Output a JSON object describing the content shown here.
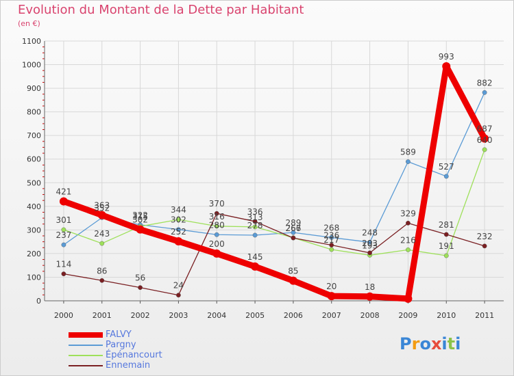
{
  "title": "Evolution du Montant de la Dette par Habitant",
  "subtitle": "(en €)",
  "logo": {
    "letters": [
      "P",
      "r",
      "o",
      "x",
      "i",
      "t",
      "i"
    ],
    "colors": [
      "#3a86d6",
      "#f39c12",
      "#3a86d6",
      "#e74c3c",
      "#3a86d6",
      "#8bc34a",
      "#3a86d6"
    ]
  },
  "chart_data": {
    "type": "line",
    "x": [
      "2000",
      "2001",
      "2002",
      "2003",
      "2004",
      "2005",
      "2006",
      "2007",
      "2008",
      "2009",
      "2010",
      "2011"
    ],
    "ylim": [
      0,
      1100
    ],
    "yticks": [
      "0",
      "100",
      "200",
      "300",
      "400",
      "500",
      "600",
      "700",
      "800",
      "900",
      "1000",
      "1100"
    ],
    "grid": true,
    "legend_position": "bottom-left",
    "series": [
      {
        "name": "FALVY",
        "color": "#ee0000",
        "values": [
          421,
          363,
          302,
          252,
          200,
          145,
          85,
          20,
          18,
          9,
          993,
          687
        ],
        "labels": [
          "421",
          "363",
          "302",
          "252",
          "200",
          "145",
          "85",
          "20",
          "18",
          "",
          "993",
          "687"
        ]
      },
      {
        "name": "Pargny",
        "color": "#5b9bd5",
        "values": [
          237,
          352,
          322,
          302,
          280,
          278,
          289,
          268,
          248,
          589,
          527,
          882
        ],
        "labels": [
          "237",
          "352",
          "322",
          "302",
          "280",
          "278",
          "289",
          "268",
          "248",
          "589",
          "527",
          "882"
        ]
      },
      {
        "name": "Épénancourt",
        "color": "#9ee05a",
        "values": [
          301,
          243,
          315,
          344,
          316,
          313,
          267,
          217,
          193,
          216,
          191,
          640
        ],
        "labels": [
          "301",
          "243",
          "315",
          "344",
          "316",
          "313",
          "267",
          "217",
          "193",
          "216",
          "191",
          "640"
        ]
      },
      {
        "name": "Ennemain",
        "color": "#7a1f22",
        "values": [
          114,
          86,
          56,
          24,
          370,
          336,
          266,
          236,
          203,
          329,
          281,
          232
        ],
        "labels": [
          "114",
          "86",
          "56",
          "24",
          "370",
          "336",
          "266",
          "236",
          "203",
          "329",
          "281",
          "232"
        ]
      }
    ]
  }
}
